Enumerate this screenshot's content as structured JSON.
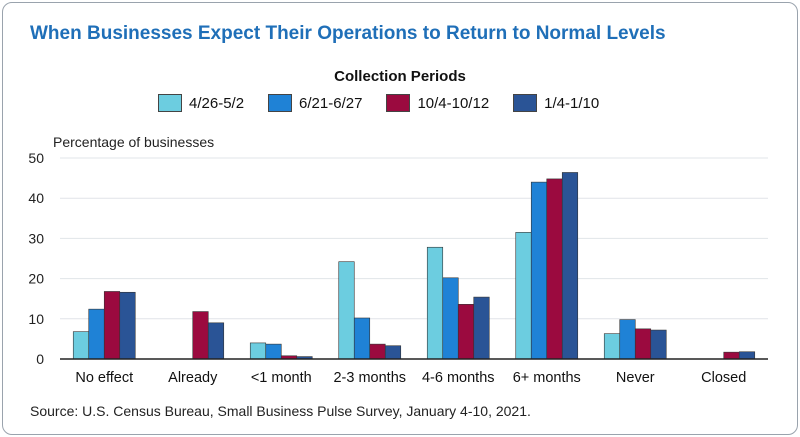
{
  "title": "When Businesses Expect Their Operations to Return to Normal Levels",
  "legend_title": "Collection Periods",
  "source": "Source: U.S. Census Bureau, Small Business Pulse Survey, January 4-10, 2021.",
  "chart_data": {
    "type": "bar",
    "ylabel": "Percentage of businesses",
    "xlabel": "",
    "ylim": [
      0,
      50
    ],
    "yticks": [
      0,
      10,
      20,
      30,
      40,
      50
    ],
    "grid": true,
    "legend_position": "top-center",
    "categories": [
      "No effect",
      "Already",
      "<1 month",
      "2-3 months",
      "4-6 months",
      "6+ months",
      "Never",
      "Closed"
    ],
    "series": [
      {
        "name": "4/26-5/2",
        "color": "#6ccde0",
        "values": [
          6.8,
          null,
          4.0,
          24.2,
          27.8,
          31.5,
          6.3,
          null
        ]
      },
      {
        "name": "6/21-6/27",
        "color": "#1f82d6",
        "values": [
          12.4,
          null,
          3.7,
          10.2,
          20.2,
          44.0,
          9.8,
          null
        ]
      },
      {
        "name": "10/4-10/12",
        "color": "#9b0a3f",
        "values": [
          16.8,
          11.8,
          0.8,
          3.7,
          13.6,
          44.8,
          7.5,
          1.7
        ]
      },
      {
        "name": "1/4-1/10",
        "color": "#2a5496",
        "values": [
          16.6,
          9.0,
          0.6,
          3.3,
          15.4,
          46.4,
          7.2,
          1.8
        ]
      }
    ]
  }
}
